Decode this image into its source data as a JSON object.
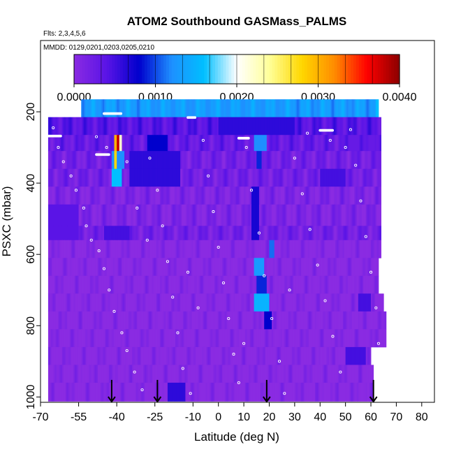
{
  "chart_data": {
    "type": "heatmap",
    "title": "ATOM2 Southbound GASMass_PALMS",
    "flights_note": "Flts: 2,3,4,5,6",
    "dates_note": "MMDD: 0129,0201,0203,0205,0210",
    "xlabel": "Latitude (deg N)",
    "ylabel": "PSXC (mbar)",
    "xlim": [
      -70,
      85
    ],
    "ylim": [
      1015,
      0
    ],
    "x_ticks": [
      "-70",
      "-55",
      "-40",
      "-25",
      "-10",
      "0",
      "10",
      "20",
      "30",
      "40",
      "50",
      "60",
      "70",
      "80"
    ],
    "x_tick_values": [
      -70,
      -55,
      -40,
      -25,
      -10,
      0,
      10,
      20,
      30,
      40,
      50,
      60,
      70,
      80
    ],
    "y_ticks": [
      "200",
      "400",
      "600",
      "800",
      "1000"
    ],
    "y_tick_values": [
      200,
      400,
      600,
      800,
      1000
    ],
    "colorbar": {
      "min": 0,
      "max": 0.004,
      "tick_labels": [
        "0.0000",
        "0.0010",
        "0.0020",
        "0.0030",
        "0.0040"
      ],
      "tick_values": [
        0,
        0.001,
        0.002,
        0.003,
        0.004
      ],
      "colors": [
        "#8a2be2",
        "#5a14e6",
        "#0000cd",
        "#1e90ff",
        "#00bfff",
        "#ffffff",
        "#ffff99",
        "#ffd700",
        "#ff8c00",
        "#ff0000",
        "#8b0000"
      ]
    },
    "lat_bins": [
      -67,
      72
    ],
    "pressure_bands": [
      {
        "p_top": 165,
        "p_bottom": 215,
        "lat_min": -54,
        "lat_max": 63,
        "base": 0.0013
      },
      {
        "p_top": 215,
        "p_bottom": 265,
        "lat_min": -67,
        "lat_max": 64,
        "base": 0.0004
      },
      {
        "p_top": 265,
        "p_bottom": 310,
        "lat_min": -67,
        "lat_max": 64,
        "base": 0.0003
      },
      {
        "p_top": 310,
        "p_bottom": 360,
        "lat_min": -67,
        "lat_max": 64,
        "base": 0.0002
      },
      {
        "p_top": 360,
        "p_bottom": 410,
        "lat_min": -67,
        "lat_max": 64,
        "base": 0.0002
      },
      {
        "p_top": 410,
        "p_bottom": 460,
        "lat_min": -67,
        "lat_max": 64,
        "base": 0.0001
      },
      {
        "p_top": 460,
        "p_bottom": 520,
        "lat_min": -67,
        "lat_max": 64,
        "base": 0.0001
      },
      {
        "p_top": 520,
        "p_bottom": 560,
        "lat_min": -67,
        "lat_max": 64,
        "base": 0.0002
      },
      {
        "p_top": 560,
        "p_bottom": 610,
        "lat_min": -67,
        "lat_max": 64,
        "base": 0.0
      },
      {
        "p_top": 610,
        "p_bottom": 660,
        "lat_min": -67,
        "lat_max": 63,
        "base": 0.0
      },
      {
        "p_top": 660,
        "p_bottom": 710,
        "lat_min": -67,
        "lat_max": 63,
        "base": 0.0
      },
      {
        "p_top": 710,
        "p_bottom": 760,
        "lat_min": -67,
        "lat_max": 65,
        "base": 0.0
      },
      {
        "p_top": 760,
        "p_bottom": 810,
        "lat_min": -67,
        "lat_max": 66,
        "base": 0.0
      },
      {
        "p_top": 810,
        "p_bottom": 860,
        "lat_min": -67,
        "lat_max": 66,
        "base": 0.0
      },
      {
        "p_top": 860,
        "p_bottom": 910,
        "lat_min": -67,
        "lat_max": 60,
        "base": 0.0
      },
      {
        "p_top": 910,
        "p_bottom": 960,
        "lat_min": -67,
        "lat_max": 61,
        "base": 0.0
      },
      {
        "p_top": 960,
        "p_bottom": 1012,
        "lat_min": -67,
        "lat_max": 61,
        "base": 0.0
      }
    ],
    "enhancements": [
      {
        "lat_min": -58,
        "lat_max": -56,
        "p_top": 165,
        "p_bottom": 215,
        "value": 0.0004
      },
      {
        "lat_min": 60,
        "lat_max": 62,
        "p_top": 165,
        "p_bottom": 215,
        "value": 0.0004
      },
      {
        "lat_min": 62,
        "lat_max": 64,
        "p_top": 165,
        "p_bottom": 215,
        "value": 0.0016
      },
      {
        "lat_min": -30,
        "lat_max": 30,
        "p_top": 165,
        "p_bottom": 215,
        "value": 0.0012
      },
      {
        "lat_min": 0,
        "lat_max": 30,
        "p_top": 215,
        "p_bottom": 265,
        "value": 0.0006
      },
      {
        "lat_min": -41,
        "lat_max": -40,
        "p_top": 265,
        "p_bottom": 310,
        "value": 0.003
      },
      {
        "lat_min": -40,
        "lat_max": -39,
        "p_top": 265,
        "p_bottom": 310,
        "value": 0.0038
      },
      {
        "lat_min": -39,
        "lat_max": -38,
        "p_top": 265,
        "p_bottom": 310,
        "value": 0.0022
      },
      {
        "lat_min": -42,
        "lat_max": -37,
        "p_top": 310,
        "p_bottom": 360,
        "value": 0.0012
      },
      {
        "lat_min": -41,
        "lat_max": -40,
        "p_top": 310,
        "p_bottom": 360,
        "value": 0.0028
      },
      {
        "lat_min": -42,
        "lat_max": -38,
        "p_top": 360,
        "p_bottom": 410,
        "value": 0.0016
      },
      {
        "lat_min": -28,
        "lat_max": -20,
        "p_top": 265,
        "p_bottom": 310,
        "value": 0.0008
      },
      {
        "lat_min": -35,
        "lat_max": -15,
        "p_top": 310,
        "p_bottom": 410,
        "value": 0.0006
      },
      {
        "lat_min": 14,
        "lat_max": 19,
        "p_top": 265,
        "p_bottom": 310,
        "value": 0.0012
      },
      {
        "lat_min": 15,
        "lat_max": 17,
        "p_top": 310,
        "p_bottom": 360,
        "value": 0.0009
      },
      {
        "lat_min": 13,
        "lat_max": 16,
        "p_top": 410,
        "p_bottom": 560,
        "value": 0.0007
      },
      {
        "lat_min": 20,
        "lat_max": 22,
        "p_top": 560,
        "p_bottom": 610,
        "value": 0.0011
      },
      {
        "lat_min": 14,
        "lat_max": 18,
        "p_top": 610,
        "p_bottom": 660,
        "value": 0.0013
      },
      {
        "lat_min": 15,
        "lat_max": 19,
        "p_top": 660,
        "p_bottom": 710,
        "value": 0.0009
      },
      {
        "lat_min": 14,
        "lat_max": 20,
        "p_top": 710,
        "p_bottom": 760,
        "value": 0.0015
      },
      {
        "lat_min": 18,
        "lat_max": 21,
        "p_top": 760,
        "p_bottom": 810,
        "value": 0.0008
      },
      {
        "lat_min": -67,
        "lat_max": -55,
        "p_top": 460,
        "p_bottom": 560,
        "value": 0.0004
      },
      {
        "lat_min": -45,
        "lat_max": -35,
        "p_top": 520,
        "p_bottom": 560,
        "value": 0.0005
      },
      {
        "lat_min": -20,
        "lat_max": -13,
        "p_top": 960,
        "p_bottom": 1012,
        "value": 0.0006
      },
      {
        "lat_min": 50,
        "lat_max": 58,
        "p_top": 860,
        "p_bottom": 910,
        "value": 0.0005
      },
      {
        "lat_min": 55,
        "lat_max": 60,
        "p_top": 710,
        "p_bottom": 760,
        "value": 0.0005
      },
      {
        "lat_min": 40,
        "lat_max": 50,
        "p_top": 360,
        "p_bottom": 410,
        "value": 0.0005
      },
      {
        "lat_min": 50,
        "lat_max": 64,
        "p_top": 265,
        "p_bottom": 310,
        "value": 0.0003
      }
    ],
    "flight_track_points": [
      [
        -65,
        245
      ],
      [
        -63,
        300
      ],
      [
        -61,
        340
      ],
      [
        -58,
        380
      ],
      [
        -56,
        420
      ],
      [
        -53,
        470
      ],
      [
        -52,
        520
      ],
      [
        -50,
        560
      ],
      [
        -47,
        590
      ],
      [
        -45,
        640
      ],
      [
        -43,
        700
      ],
      [
        -41,
        760
      ],
      [
        -38,
        820
      ],
      [
        -36,
        870
      ],
      [
        -33,
        930
      ],
      [
        -30,
        980
      ],
      [
        -27,
        330
      ],
      [
        -24,
        420
      ],
      [
        -22,
        520
      ],
      [
        -20,
        620
      ],
      [
        -18,
        720
      ],
      [
        -16,
        820
      ],
      [
        -14,
        920
      ],
      [
        -11,
        990
      ],
      [
        -6,
        280
      ],
      [
        -4,
        380
      ],
      [
        -2,
        480
      ],
      [
        0,
        580
      ],
      [
        2,
        680
      ],
      [
        4,
        780
      ],
      [
        6,
        880
      ],
      [
        8,
        960
      ],
      [
        11,
        300
      ],
      [
        13,
        420
      ],
      [
        16,
        540
      ],
      [
        18,
        660
      ],
      [
        21,
        780
      ],
      [
        24,
        900
      ],
      [
        26,
        990
      ],
      [
        30,
        330
      ],
      [
        33,
        430
      ],
      [
        36,
        530
      ],
      [
        39,
        630
      ],
      [
        42,
        730
      ],
      [
        45,
        830
      ],
      [
        48,
        930
      ],
      [
        52,
        250
      ],
      [
        54,
        350
      ],
      [
        56,
        450
      ],
      [
        58,
        550
      ],
      [
        60,
        650
      ],
      [
        62,
        750
      ],
      [
        63,
        850
      ],
      [
        -48,
        270
      ],
      [
        -44,
        300
      ],
      [
        -36,
        340
      ],
      [
        -32,
        470
      ],
      [
        -28,
        560
      ],
      [
        -12,
        650
      ],
      [
        -8,
        750
      ],
      [
        10,
        850
      ],
      [
        28,
        700
      ],
      [
        35,
        260
      ],
      [
        44,
        280
      ],
      [
        50,
        300
      ]
    ],
    "dense_track_segments": [
      {
        "lat_min": -45,
        "lat_max": -38,
        "pressure": 205
      },
      {
        "lat_min": -68,
        "lat_max": -62,
        "pressure": 268
      },
      {
        "lat_min": -48,
        "lat_max": -43,
        "pressure": 320
      },
      {
        "lat_min": -12,
        "lat_max": -9,
        "pressure": 216
      },
      {
        "lat_min": 8,
        "lat_max": 12,
        "pressure": 274
      },
      {
        "lat_min": 40,
        "lat_max": 45,
        "pressure": 252
      },
      {
        "lat_min": 65,
        "lat_max": 70,
        "pressure": 204
      }
    ],
    "arrows_lat": [
      -42,
      -24,
      19,
      61
    ],
    "arrow_base_pressure": 960
  }
}
